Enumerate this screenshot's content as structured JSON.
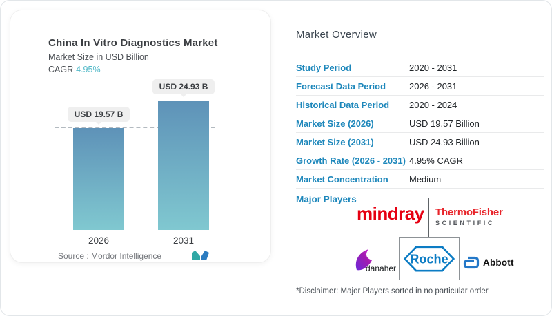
{
  "left_card": {
    "title": "China In Vitro Diagnostics Market",
    "subtitle": "Market Size in USD Billion",
    "cagr_label": "CAGR",
    "cagr_value": "4.95%",
    "source_label": "Source :  Mordor Intelligence",
    "logo": "mordor-intelligence-logo"
  },
  "chart_data": {
    "type": "bar",
    "title": "China In Vitro Diagnostics Market",
    "ylabel": "Market Size in USD Billion",
    "categories": [
      "2026",
      "2031"
    ],
    "values": [
      19.57,
      24.93
    ],
    "value_labels": [
      "USD 19.57 B",
      "USD 24.93 B"
    ],
    "unit": "USD Billion",
    "cagr": "4.95%",
    "reference_line_value": 19.57,
    "bar_gradient_top": "#5e92b8",
    "bar_gradient_bottom": "#80c8d0",
    "grid": false,
    "legend": false
  },
  "overview": {
    "heading": "Market Overview",
    "rows": [
      {
        "label": "Study Period",
        "value": "2020 - 2031"
      },
      {
        "label": "Forecast Data Period",
        "value": "2026 - 2031"
      },
      {
        "label": "Historical Data Period",
        "value": "2020 - 2024"
      },
      {
        "label": "Market Size (2026)",
        "value": "USD 19.57 Billion"
      },
      {
        "label": "Market Size (2031)",
        "value": "USD 24.93 Billion"
      },
      {
        "label": "Growth Rate (2026 - 2031)",
        "value": "4.95% CAGR"
      },
      {
        "label": "Market Concentration",
        "value": "Medium"
      }
    ],
    "major_players_label": "Major Players",
    "players": [
      "mindray",
      "Thermo Fisher Scientific",
      "Danaher",
      "Roche",
      "Abbott"
    ],
    "disclaimer": "*Disclaimer: Major Players sorted in no particular order"
  },
  "logos": {
    "mindray_text": "mindray",
    "thermo_line1": "ThermoFisher",
    "thermo_line2": "SCIENTIFIC",
    "danaher_text": "danaher",
    "roche_text": "Roche",
    "abbott_text": "Abbott"
  },
  "colors": {
    "accent_blue": "#1d87bb",
    "cagr_teal": "#52b9c8",
    "mindray_red": "#e60012",
    "thermo_red": "#e8242a",
    "roche_blue": "#0c7cc4",
    "abbott_blue": "#2478c8",
    "danaher_purple": "#8a2be2"
  }
}
